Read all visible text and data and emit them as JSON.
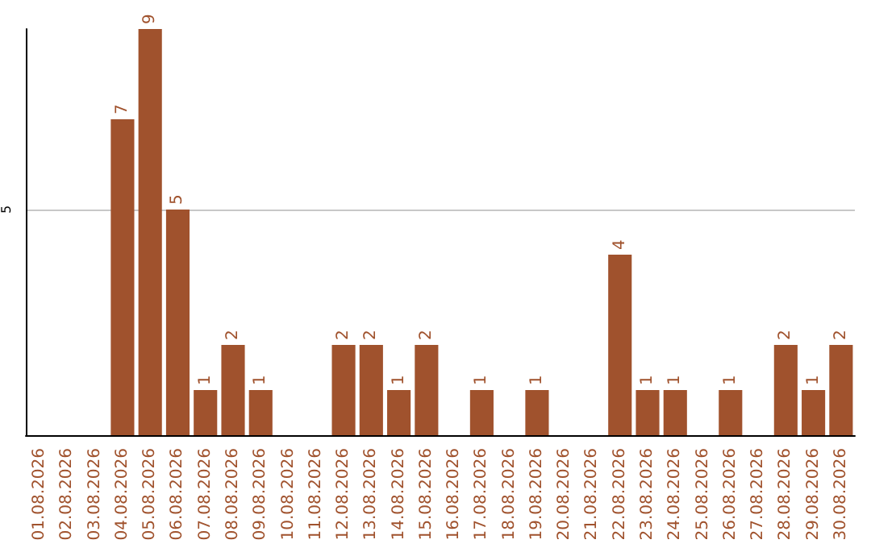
{
  "chart_data": {
    "type": "bar",
    "categories": [
      "01.08.2026",
      "02.08.2026",
      "03.08.2026",
      "04.08.2026",
      "05.08.2026",
      "06.08.2026",
      "07.08.2026",
      "08.08.2026",
      "09.08.2026",
      "10.08.2026",
      "11.08.2026",
      "12.08.2026",
      "13.08.2026",
      "14.08.2026",
      "15.08.2026",
      "16.08.2026",
      "17.08.2026",
      "18.08.2026",
      "19.08.2026",
      "20.08.2026",
      "21.08.2026",
      "22.08.2026",
      "23.08.2026",
      "24.08.2026",
      "25.08.2026",
      "26.08.2026",
      "27.08.2026",
      "28.08.2026",
      "29.08.2026",
      "30.08.2026"
    ],
    "values": [
      null,
      null,
      null,
      7,
      9,
      5,
      1,
      2,
      1,
      null,
      null,
      2,
      2,
      1,
      2,
      null,
      1,
      null,
      1,
      null,
      null,
      4,
      1,
      1,
      null,
      1,
      null,
      2,
      1,
      2
    ],
    "color": "#a0522d",
    "ylim": [
      0,
      9
    ],
    "yticks": [
      5
    ],
    "grid": "y",
    "data_labels": true
  }
}
